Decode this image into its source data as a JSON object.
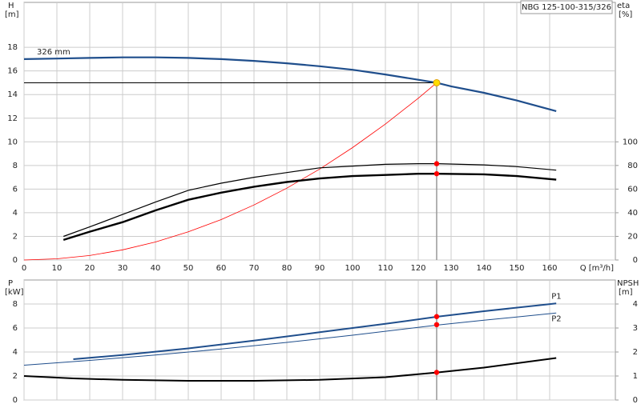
{
  "chart_data": [
    {
      "type": "line",
      "title": "NBG 125-100-315/326",
      "ylabel": "H",
      "yunit": "[m]",
      "y2label": "eta",
      "y2unit": "[%]",
      "xlabel": "Q [m³/h]",
      "xlim": [
        0,
        180
      ],
      "xticks": [
        0,
        10,
        20,
        30,
        40,
        50,
        60,
        70,
        80,
        90,
        100,
        110,
        120,
        130,
        140,
        150,
        160
      ],
      "ylim": [
        0,
        21.8
      ],
      "yticks": [
        0,
        2,
        4,
        6,
        8,
        10,
        12,
        14,
        16,
        18
      ],
      "y2lim": [
        0,
        218
      ],
      "y2ticks": [
        0,
        20,
        40,
        60,
        80,
        100
      ],
      "grid": true,
      "series": [
        {
          "name": "326 mm",
          "color": "#1f4e8c",
          "width": 2.2,
          "x": [
            0,
            10,
            20,
            30,
            40,
            50,
            60,
            70,
            80,
            90,
            100,
            110,
            120,
            125.6,
            130,
            140,
            150,
            162
          ],
          "values": [
            17.0,
            17.05,
            17.1,
            17.15,
            17.15,
            17.1,
            17.0,
            16.85,
            16.65,
            16.4,
            16.1,
            15.7,
            15.25,
            15.0,
            14.7,
            14.15,
            13.5,
            12.6
          ]
        },
        {
          "color": "#ff0000",
          "width": 0.8,
          "x": [
            0,
            10,
            20,
            30,
            40,
            50,
            60,
            70,
            80,
            90,
            100,
            110,
            120,
            125.6
          ],
          "values": [
            0,
            0.1,
            0.38,
            0.86,
            1.52,
            2.38,
            3.42,
            4.66,
            6.08,
            7.7,
            9.51,
            11.5,
            13.69,
            15.0
          ]
        },
        {
          "color": "#000000",
          "width": 1.2,
          "axis": "y2",
          "x": [
            12,
            20,
            30,
            40,
            50,
            60,
            70,
            80,
            90,
            100,
            110,
            120,
            126,
            140,
            150,
            162
          ],
          "values": [
            20,
            28,
            38.5,
            49,
            59,
            65,
            70,
            74,
            78,
            79.5,
            81,
            81.5,
            81.5,
            80.5,
            79,
            76
          ]
        },
        {
          "color": "#000000",
          "width": 2.4,
          "axis": "y2",
          "x": [
            12,
            20,
            30,
            40,
            50,
            60,
            70,
            80,
            90,
            100,
            110,
            120,
            126,
            140,
            150,
            162
          ],
          "values": [
            17,
            24,
            32,
            42,
            51,
            57,
            62,
            66,
            69,
            71,
            72,
            73,
            73,
            72.5,
            71,
            68
          ]
        }
      ],
      "markers": [
        {
          "x": 125.6,
          "y": 15.0,
          "color": "#ffdd00"
        },
        {
          "x": 125.6,
          "y": 81.5,
          "color": "#ff0000",
          "axis": "y2"
        },
        {
          "x": 125.6,
          "y": 73,
          "color": "#ff0000",
          "axis": "y2"
        }
      ]
    },
    {
      "type": "line",
      "ylabel": "P",
      "yunit": "[kW]",
      "y2label": "NPSH",
      "y2unit": "[m]",
      "xlim": [
        0,
        180
      ],
      "xgrid": [
        0,
        10,
        20,
        30,
        40,
        50,
        60,
        70,
        80,
        90,
        100,
        110,
        120,
        130,
        140,
        150,
        160
      ],
      "ylim": [
        0,
        10
      ],
      "yticks": [
        0,
        2,
        4,
        6,
        8
      ],
      "y2lim": [
        0,
        5
      ],
      "y2ticks": [
        0,
        1,
        2,
        3,
        4
      ],
      "grid": true,
      "series": [
        {
          "name": "P1",
          "color": "#1f4e8c",
          "width": 2,
          "x": [
            15,
            30,
            50,
            70,
            90,
            110,
            126,
            140,
            162
          ],
          "values": [
            3.4,
            3.75,
            4.3,
            4.95,
            5.65,
            6.35,
            6.95,
            7.4,
            8.05
          ]
        },
        {
          "name": "P2",
          "color": "#1f4e8c",
          "width": 1,
          "x": [
            0,
            20,
            40,
            60,
            80,
            100,
            126,
            140,
            162
          ],
          "values": [
            2.9,
            3.3,
            3.75,
            4.25,
            4.8,
            5.4,
            6.25,
            6.65,
            7.25
          ]
        },
        {
          "color": "#000000",
          "width": 2,
          "axis": "y2",
          "x": [
            0,
            15,
            30,
            50,
            70,
            90,
            110,
            126,
            140,
            162
          ],
          "values": [
            1.0,
            0.9,
            0.84,
            0.8,
            0.8,
            0.84,
            0.95,
            1.15,
            1.35,
            1.75
          ]
        }
      ],
      "markers": [
        {
          "x": 125.6,
          "y": 6.95,
          "color": "#ff0000"
        },
        {
          "x": 125.6,
          "y": 6.28,
          "color": "#ff0000"
        },
        {
          "x": 125.6,
          "y": 1.15,
          "color": "#ff0000",
          "axis": "y2"
        }
      ]
    }
  ]
}
